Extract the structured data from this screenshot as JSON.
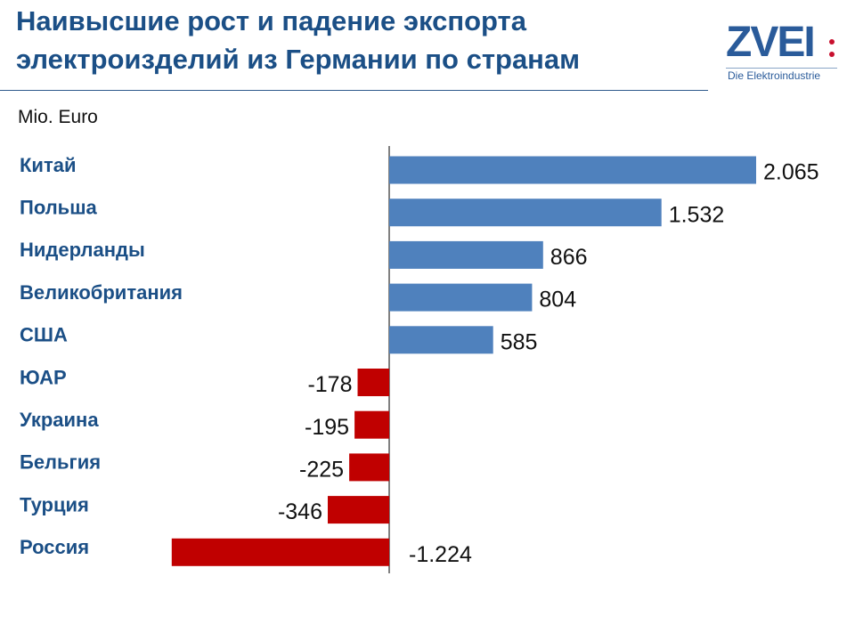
{
  "header": {
    "title_line1": "Наивысшие рост и падение экспорта",
    "title_line2": "электроизделий из Германии по странам"
  },
  "logo": {
    "name": "ZVEI",
    "tagline": "Die Elektroindustrie"
  },
  "unit_label": "Mio. Euro",
  "colors": {
    "title": "#1b4f86",
    "positive_bar": "#4f81bd",
    "negative_bar": "#c00000",
    "logo_blue": "#2a5b9a",
    "logo_red": "#c8102e"
  },
  "chart_data": {
    "type": "bar",
    "orientation": "horizontal",
    "ylabel": "",
    "xlabel": "",
    "categories": [
      "Китай",
      "Польша",
      "Нидерланды",
      "Великобритания",
      "США",
      "ЮАР",
      "Украина",
      "Бельгия",
      "Турция",
      "Россия"
    ],
    "values": [
      2065,
      1532,
      866,
      804,
      585,
      -178,
      -195,
      -225,
      -346,
      -1224
    ],
    "value_labels": [
      "2.065",
      "1.532",
      "866",
      "804",
      "585",
      "-178",
      "-195",
      "-225",
      "-346",
      "-1.224"
    ],
    "xlim": [
      -1224,
      2065
    ],
    "grid": false,
    "legend": "none"
  }
}
